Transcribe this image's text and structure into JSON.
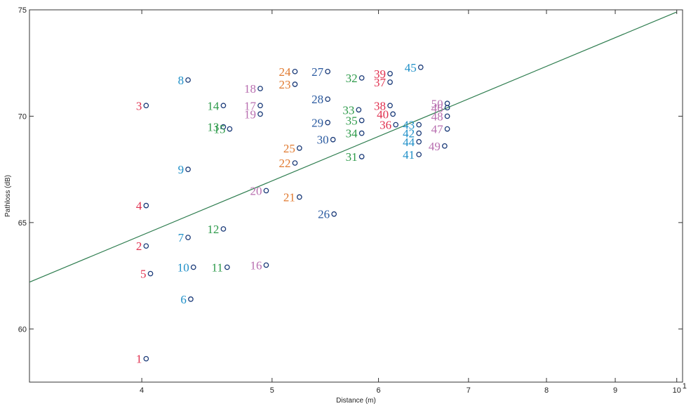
{
  "chart_data": {
    "type": "scatter",
    "title": "",
    "xlabel": "Distance (m)",
    "ylabel": "Pathloss (dB)",
    "x_scale": "log",
    "xlim": [
      3.3,
      10.1
    ],
    "ylim": [
      57.5,
      75
    ],
    "x_ticks": [
      {
        "value": 4,
        "label": "4"
      },
      {
        "value": 5,
        "label": "5"
      },
      {
        "value": 6,
        "label": "6"
      },
      {
        "value": 7,
        "label": "7"
      },
      {
        "value": 8,
        "label": "8"
      },
      {
        "value": 9,
        "label": "9"
      },
      {
        "value": 10,
        "label": "10"
      }
    ],
    "x_tick_exponent": "1",
    "y_ticks": [
      60,
      65,
      70,
      75
    ],
    "grid": false,
    "fit_line": {
      "x": [
        3.3,
        10.0
      ],
      "y": [
        62.2,
        74.9
      ],
      "color": "#2e7d4f"
    },
    "colors": {
      "red": "#e0304f",
      "blue": "#1e8fc8",
      "green": "#2d9a4a",
      "orange": "#e07a30",
      "purple": "#b86fb0",
      "navy": "#2a5aa0"
    },
    "points": [
      {
        "label": "1",
        "x": 4.03,
        "y": 58.6,
        "color": "#e0304f"
      },
      {
        "label": "2",
        "x": 4.03,
        "y": 63.9,
        "color": "#e0304f"
      },
      {
        "label": "3",
        "x": 4.03,
        "y": 70.5,
        "color": "#e0304f"
      },
      {
        "label": "4",
        "x": 4.03,
        "y": 65.8,
        "color": "#e0304f"
      },
      {
        "label": "5",
        "x": 4.06,
        "y": 62.6,
        "color": "#e0304f"
      },
      {
        "label": "6",
        "x": 4.35,
        "y": 61.4,
        "color": "#1e8fc8"
      },
      {
        "label": "7",
        "x": 4.33,
        "y": 64.3,
        "color": "#1e8fc8"
      },
      {
        "label": "8",
        "x": 4.33,
        "y": 71.7,
        "color": "#1e8fc8"
      },
      {
        "label": "9",
        "x": 4.33,
        "y": 67.5,
        "color": "#1e8fc8"
      },
      {
        "label": "10",
        "x": 4.37,
        "y": 62.9,
        "color": "#1e8fc8"
      },
      {
        "label": "11",
        "x": 4.63,
        "y": 62.9,
        "color": "#2d9a4a"
      },
      {
        "label": "12",
        "x": 4.6,
        "y": 64.7,
        "color": "#2d9a4a"
      },
      {
        "label": "13",
        "x": 4.6,
        "y": 69.5,
        "color": "#2d9a4a"
      },
      {
        "label": "14",
        "x": 4.6,
        "y": 70.5,
        "color": "#2d9a4a"
      },
      {
        "label": "15",
        "x": 4.65,
        "y": 69.4,
        "color": "#2d9a4a"
      },
      {
        "label": "16",
        "x": 4.95,
        "y": 63.0,
        "color": "#b86fb0"
      },
      {
        "label": "17",
        "x": 4.9,
        "y": 70.5,
        "color": "#b86fb0"
      },
      {
        "label": "18",
        "x": 4.9,
        "y": 71.3,
        "color": "#b86fb0"
      },
      {
        "label": "19",
        "x": 4.9,
        "y": 70.1,
        "color": "#b86fb0"
      },
      {
        "label": "20",
        "x": 4.95,
        "y": 66.5,
        "color": "#b86fb0"
      },
      {
        "label": "21",
        "x": 5.24,
        "y": 66.2,
        "color": "#e07a30"
      },
      {
        "label": "22",
        "x": 5.2,
        "y": 67.8,
        "color": "#e07a30"
      },
      {
        "label": "23",
        "x": 5.2,
        "y": 71.5,
        "color": "#e07a30"
      },
      {
        "label": "24",
        "x": 5.2,
        "y": 72.1,
        "color": "#e07a30"
      },
      {
        "label": "25",
        "x": 5.24,
        "y": 68.5,
        "color": "#e07a30"
      },
      {
        "label": "26",
        "x": 5.56,
        "y": 65.4,
        "color": "#2a5aa0"
      },
      {
        "label": "27",
        "x": 5.5,
        "y": 72.1,
        "color": "#2a5aa0"
      },
      {
        "label": "28",
        "x": 5.5,
        "y": 70.8,
        "color": "#2a5aa0"
      },
      {
        "label": "29",
        "x": 5.5,
        "y": 69.7,
        "color": "#2a5aa0"
      },
      {
        "label": "30",
        "x": 5.55,
        "y": 68.9,
        "color": "#2a5aa0"
      },
      {
        "label": "31",
        "x": 5.83,
        "y": 68.1,
        "color": "#2d9a4a"
      },
      {
        "label": "32",
        "x": 5.83,
        "y": 71.8,
        "color": "#2d9a4a"
      },
      {
        "label": "33",
        "x": 5.8,
        "y": 70.3,
        "color": "#2d9a4a"
      },
      {
        "label": "34",
        "x": 5.83,
        "y": 69.2,
        "color": "#2d9a4a"
      },
      {
        "label": "35",
        "x": 5.83,
        "y": 69.8,
        "color": "#2d9a4a"
      },
      {
        "label": "36",
        "x": 6.18,
        "y": 69.6,
        "color": "#e0304f"
      },
      {
        "label": "37",
        "x": 6.12,
        "y": 71.6,
        "color": "#e0304f"
      },
      {
        "label": "38",
        "x": 6.12,
        "y": 70.5,
        "color": "#e0304f"
      },
      {
        "label": "39",
        "x": 6.12,
        "y": 72.0,
        "color": "#e0304f"
      },
      {
        "label": "40",
        "x": 6.15,
        "y": 70.1,
        "color": "#e0304f"
      },
      {
        "label": "41",
        "x": 6.43,
        "y": 68.2,
        "color": "#1e8fc8"
      },
      {
        "label": "42",
        "x": 6.43,
        "y": 69.2,
        "color": "#1e8fc8"
      },
      {
        "label": "43",
        "x": 6.43,
        "y": 69.6,
        "color": "#1e8fc8"
      },
      {
        "label": "44",
        "x": 6.43,
        "y": 68.8,
        "color": "#1e8fc8"
      },
      {
        "label": "45",
        "x": 6.45,
        "y": 72.3,
        "color": "#1e8fc8"
      },
      {
        "label": "46",
        "x": 6.75,
        "y": 70.4,
        "color": "#b86fb0"
      },
      {
        "label": "47",
        "x": 6.75,
        "y": 69.4,
        "color": "#b86fb0"
      },
      {
        "label": "48",
        "x": 6.75,
        "y": 70.0,
        "color": "#b86fb0"
      },
      {
        "label": "49",
        "x": 6.72,
        "y": 68.6,
        "color": "#b86fb0"
      },
      {
        "label": "50",
        "x": 6.75,
        "y": 70.6,
        "color": "#b86fb0"
      }
    ]
  }
}
